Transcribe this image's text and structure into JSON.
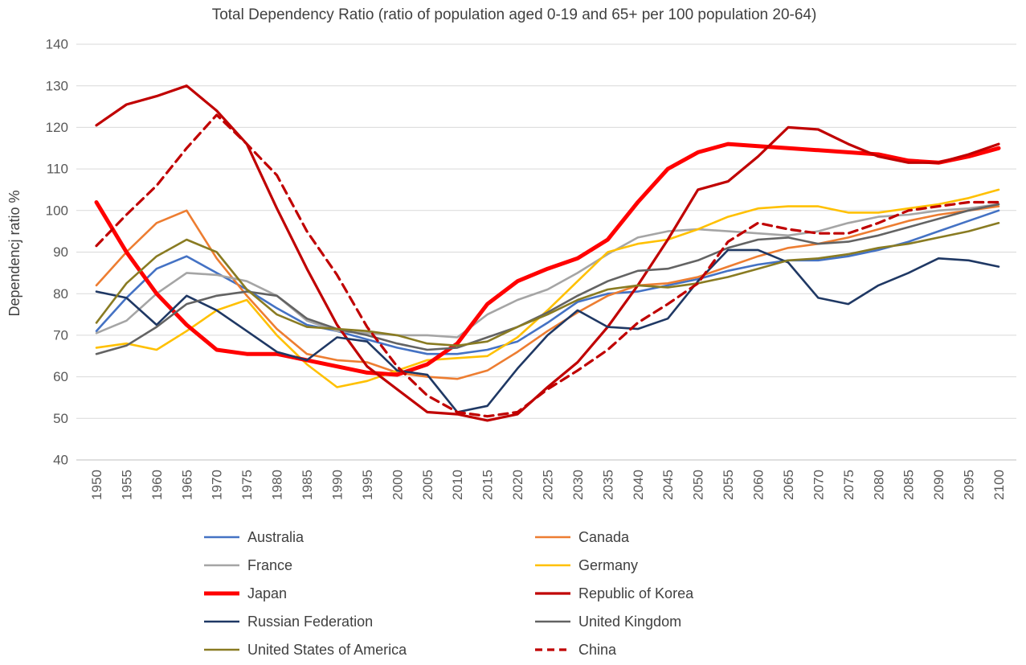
{
  "chart_data": {
    "type": "line",
    "title": "Total Dependency Ratio (ratio of population aged 0-19 and 65+ per 100 population 20-64)",
    "xlabel": "",
    "ylabel": "Dependencj ratio %",
    "ylim": [
      40,
      140
    ],
    "ytick_step": 10,
    "grid": "horizontal-only",
    "legend_position": "bottom-two-columns",
    "x": [
      1950,
      1955,
      1960,
      1965,
      1970,
      1975,
      1980,
      1985,
      1990,
      1995,
      2000,
      2005,
      2010,
      2015,
      2020,
      2025,
      2030,
      2035,
      2040,
      2045,
      2050,
      2055,
      2060,
      2065,
      2070,
      2075,
      2080,
      2085,
      2090,
      2095,
      2100
    ],
    "series": [
      {
        "name": "Australia",
        "color": "#4472C4",
        "width": 2.6,
        "dash": null,
        "values": [
          71,
          79,
          86,
          89,
          85,
          81,
          76.5,
          72.5,
          71,
          69,
          67,
          65.5,
          65.5,
          66.5,
          68.5,
          73,
          78,
          80,
          80.5,
          82,
          83.5,
          85.5,
          87,
          88,
          88,
          89,
          90.5,
          92.5,
          95,
          97.5,
          100
        ]
      },
      {
        "name": "Canada",
        "color": "#ED7D31",
        "width": 2.6,
        "dash": null,
        "values": [
          82,
          90,
          97,
          100,
          88.5,
          79.5,
          71.5,
          65.5,
          64,
          63.5,
          61,
          60,
          59.5,
          61.5,
          66,
          71,
          75.5,
          79.5,
          82,
          82.5,
          84,
          86.5,
          89,
          91,
          92,
          93.5,
          95.5,
          97.5,
          99,
          100,
          101
        ]
      },
      {
        "name": "France",
        "color": "#A5A5A5",
        "width": 2.6,
        "dash": null,
        "values": [
          70.5,
          73.5,
          80,
          85,
          84.5,
          83,
          79.5,
          73.5,
          71,
          70.5,
          70,
          70,
          69.5,
          75,
          78.5,
          81,
          85,
          89.5,
          93.5,
          95,
          95.5,
          95,
          94.5,
          94,
          95,
          97,
          98.5,
          99,
          100,
          100.5,
          101.5
        ]
      },
      {
        "name": "Germany",
        "color": "#FFC000",
        "width": 2.6,
        "dash": null,
        "values": [
          67,
          68,
          66.5,
          71,
          76,
          78.5,
          70,
          63,
          57.5,
          59,
          61.5,
          64,
          64.5,
          65,
          69.5,
          76,
          83,
          90,
          92,
          93,
          95.5,
          98.5,
          100.5,
          101,
          101,
          99.5,
          99.5,
          100.5,
          101.5,
          103,
          105
        ]
      },
      {
        "name": "Japan",
        "color": "#FF0000",
        "width": 5,
        "dash": null,
        "values": [
          102,
          90,
          80,
          72.5,
          66.5,
          65.5,
          65.5,
          64,
          62.5,
          61,
          60.5,
          63,
          68,
          77.5,
          83,
          86,
          88.5,
          93,
          102,
          110,
          114,
          116,
          115.5,
          115,
          114.5,
          114,
          113.5,
          112,
          111.5,
          113,
          115
        ]
      },
      {
        "name": "Republic of Korea",
        "color": "#C00000",
        "width": 3.2,
        "dash": null,
        "values": [
          120.5,
          125.5,
          127.5,
          130,
          124,
          116,
          100.5,
          86,
          72.5,
          62.5,
          57,
          51.5,
          51,
          49.5,
          51,
          57.5,
          63.5,
          72,
          82,
          93,
          105,
          107,
          113,
          120,
          119.5,
          116,
          113,
          111.5,
          111.5,
          113.5,
          116
        ]
      },
      {
        "name": "Russian Federation",
        "color": "#1F3864",
        "width": 2.6,
        "dash": null,
        "values": [
          80.5,
          79,
          72.5,
          79.5,
          76,
          71,
          66,
          64,
          69.5,
          68.5,
          61.5,
          60.5,
          51.5,
          53,
          62,
          70,
          76,
          72,
          71.5,
          74,
          83,
          90.5,
          90.5,
          87.5,
          79,
          77.5,
          82,
          85,
          88.5,
          88,
          86.5
        ]
      },
      {
        "name": "United Kingdom",
        "color": "#636363",
        "width": 2.6,
        "dash": null,
        "values": [
          65.5,
          67.5,
          72,
          77.5,
          79.5,
          80.5,
          79.5,
          74,
          71.5,
          70,
          68,
          66.5,
          67,
          69.5,
          72,
          75.5,
          79.5,
          83,
          85.5,
          86,
          88,
          91,
          93,
          93.5,
          92,
          92.5,
          94,
          96,
          98,
          100,
          101.5
        ]
      },
      {
        "name": "United States of America",
        "color": "#897B22",
        "width": 2.6,
        "dash": null,
        "values": [
          73,
          82.5,
          89,
          93,
          90,
          81,
          75,
          72,
          71.5,
          71,
          70,
          68,
          67.5,
          68.5,
          72,
          75,
          78.5,
          81,
          82,
          81.5,
          82.5,
          84,
          86,
          88,
          88.5,
          89.5,
          91,
          92,
          93.5,
          95,
          97
        ]
      },
      {
        "name": "China",
        "color": "#C00000",
        "width": 3.2,
        "dash": "11 7",
        "values": [
          91.5,
          99,
          106,
          115,
          123,
          116,
          108.5,
          95,
          84.5,
          72,
          62.5,
          55.5,
          51.5,
          50.5,
          51.5,
          57,
          61.5,
          66.5,
          73,
          77.5,
          82.5,
          92.5,
          97,
          95.5,
          94.5,
          94.5,
          97,
          100,
          101,
          102,
          102
        ]
      }
    ]
  }
}
